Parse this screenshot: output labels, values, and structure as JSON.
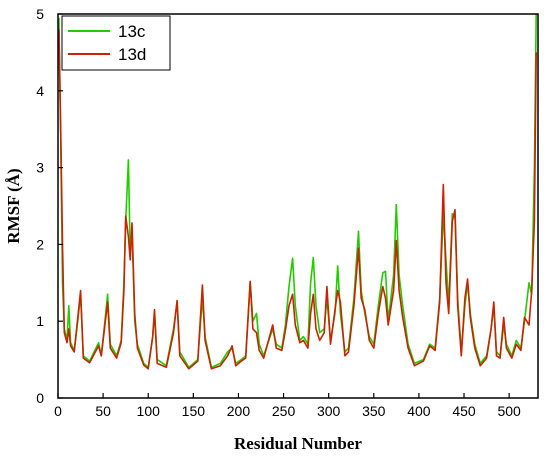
{
  "chart_data": {
    "type": "line",
    "xlabel": "Residual Number",
    "ylabel": "RMSF (Å)",
    "xlim": [
      0,
      532
    ],
    "ylim": [
      0,
      5
    ],
    "xticks": [
      0,
      50,
      100,
      150,
      200,
      250,
      300,
      350,
      400,
      450,
      500
    ],
    "yticks": [
      0,
      1,
      2,
      3,
      4,
      5
    ],
    "grid": false,
    "legend_position": "top-left",
    "series": [
      {
        "name": "13c",
        "color": "#22cc00",
        "points": [
          [
            1,
            4.95
          ],
          [
            3,
            3.4
          ],
          [
            5,
            1.5
          ],
          [
            7,
            0.9
          ],
          [
            10,
            0.75
          ],
          [
            12,
            1.2
          ],
          [
            14,
            0.72
          ],
          [
            18,
            0.62
          ],
          [
            22,
            1.0
          ],
          [
            25,
            1.35
          ],
          [
            28,
            0.55
          ],
          [
            35,
            0.48
          ],
          [
            45,
            0.72
          ],
          [
            48,
            0.55
          ],
          [
            52,
            1.0
          ],
          [
            55,
            1.35
          ],
          [
            58,
            0.7
          ],
          [
            65,
            0.55
          ],
          [
            70,
            0.75
          ],
          [
            73,
            1.5
          ],
          [
            75,
            2.3
          ],
          [
            78,
            3.1
          ],
          [
            80,
            1.9
          ],
          [
            82,
            2.2
          ],
          [
            85,
            1.0
          ],
          [
            88,
            0.7
          ],
          [
            95,
            0.45
          ],
          [
            100,
            0.4
          ],
          [
            105,
            0.8
          ],
          [
            107,
            1.1
          ],
          [
            110,
            0.5
          ],
          [
            120,
            0.42
          ],
          [
            128,
            0.9
          ],
          [
            132,
            1.25
          ],
          [
            135,
            0.6
          ],
          [
            145,
            0.4
          ],
          [
            155,
            0.5
          ],
          [
            160,
            1.3
          ],
          [
            163,
            0.8
          ],
          [
            170,
            0.4
          ],
          [
            180,
            0.45
          ],
          [
            188,
            0.6
          ],
          [
            193,
            0.65
          ],
          [
            197,
            0.45
          ],
          [
            203,
            0.5
          ],
          [
            208,
            0.55
          ],
          [
            213,
            1.5
          ],
          [
            216,
            1.0
          ],
          [
            220,
            1.1
          ],
          [
            223,
            0.7
          ],
          [
            228,
            0.55
          ],
          [
            238,
            0.9
          ],
          [
            242,
            0.7
          ],
          [
            248,
            0.65
          ],
          [
            252,
            0.95
          ],
          [
            256,
            1.45
          ],
          [
            260,
            1.82
          ],
          [
            263,
            1.2
          ],
          [
            268,
            0.75
          ],
          [
            272,
            0.8
          ],
          [
            277,
            0.7
          ],
          [
            280,
            1.5
          ],
          [
            283,
            1.83
          ],
          [
            286,
            1.2
          ],
          [
            290,
            0.85
          ],
          [
            295,
            0.9
          ],
          [
            298,
            1.3
          ],
          [
            302,
            0.75
          ],
          [
            307,
            1.1
          ],
          [
            310,
            1.72
          ],
          [
            313,
            1.1
          ],
          [
            318,
            0.6
          ],
          [
            322,
            0.65
          ],
          [
            328,
            1.3
          ],
          [
            333,
            2.17
          ],
          [
            336,
            1.4
          ],
          [
            340,
            1.1
          ],
          [
            345,
            0.8
          ],
          [
            350,
            0.7
          ],
          [
            355,
            1.2
          ],
          [
            360,
            1.63
          ],
          [
            363,
            1.65
          ],
          [
            366,
            1.0
          ],
          [
            372,
            1.6
          ],
          [
            375,
            2.52
          ],
          [
            378,
            1.6
          ],
          [
            382,
            1.2
          ],
          [
            388,
            0.7
          ],
          [
            395,
            0.45
          ],
          [
            405,
            0.5
          ],
          [
            412,
            0.7
          ],
          [
            418,
            0.65
          ],
          [
            423,
            1.3
          ],
          [
            427,
            2.4
          ],
          [
            430,
            1.8
          ],
          [
            433,
            1.2
          ],
          [
            437,
            2.4
          ],
          [
            440,
            2.35
          ],
          [
            443,
            1.3
          ],
          [
            447,
            0.6
          ],
          [
            451,
            1.2
          ],
          [
            454,
            1.5
          ],
          [
            457,
            1.1
          ],
          [
            462,
            0.7
          ],
          [
            468,
            0.45
          ],
          [
            475,
            0.55
          ],
          [
            480,
            0.9
          ],
          [
            483,
            1.2
          ],
          [
            486,
            0.6
          ],
          [
            490,
            0.55
          ],
          [
            494,
            0.95
          ],
          [
            497,
            0.7
          ],
          [
            503,
            0.55
          ],
          [
            508,
            0.75
          ],
          [
            513,
            0.65
          ],
          [
            517,
            1.0
          ],
          [
            522,
            1.5
          ],
          [
            525,
            1.35
          ],
          [
            528,
            3.0
          ],
          [
            530,
            5.0
          ]
        ]
      },
      {
        "name": "13d",
        "color": "#cc2200",
        "points": [
          [
            1,
            4.8
          ],
          [
            3,
            3.5
          ],
          [
            5,
            2.0
          ],
          [
            7,
            0.85
          ],
          [
            10,
            0.72
          ],
          [
            12,
            0.9
          ],
          [
            14,
            0.68
          ],
          [
            18,
            0.6
          ],
          [
            22,
            1.05
          ],
          [
            25,
            1.4
          ],
          [
            28,
            0.52
          ],
          [
            35,
            0.46
          ],
          [
            45,
            0.68
          ],
          [
            48,
            0.55
          ],
          [
            52,
            0.95
          ],
          [
            55,
            1.25
          ],
          [
            58,
            0.65
          ],
          [
            65,
            0.52
          ],
          [
            70,
            0.72
          ],
          [
            73,
            1.4
          ],
          [
            75,
            2.37
          ],
          [
            78,
            2.1
          ],
          [
            80,
            1.8
          ],
          [
            82,
            2.28
          ],
          [
            85,
            1.1
          ],
          [
            88,
            0.65
          ],
          [
            95,
            0.43
          ],
          [
            100,
            0.38
          ],
          [
            105,
            0.8
          ],
          [
            107,
            1.15
          ],
          [
            110,
            0.45
          ],
          [
            120,
            0.4
          ],
          [
            128,
            0.85
          ],
          [
            132,
            1.27
          ],
          [
            135,
            0.55
          ],
          [
            145,
            0.38
          ],
          [
            155,
            0.48
          ],
          [
            160,
            1.47
          ],
          [
            163,
            0.75
          ],
          [
            170,
            0.38
          ],
          [
            180,
            0.42
          ],
          [
            188,
            0.55
          ],
          [
            193,
            0.68
          ],
          [
            197,
            0.42
          ],
          [
            203,
            0.48
          ],
          [
            208,
            0.52
          ],
          [
            213,
            1.52
          ],
          [
            216,
            0.9
          ],
          [
            220,
            0.85
          ],
          [
            223,
            0.62
          ],
          [
            228,
            0.52
          ],
          [
            238,
            0.95
          ],
          [
            242,
            0.65
          ],
          [
            248,
            0.62
          ],
          [
            252,
            0.88
          ],
          [
            256,
            1.2
          ],
          [
            260,
            1.35
          ],
          [
            263,
            0.95
          ],
          [
            268,
            0.72
          ],
          [
            272,
            0.75
          ],
          [
            277,
            0.65
          ],
          [
            280,
            1.1
          ],
          [
            283,
            1.35
          ],
          [
            286,
            0.9
          ],
          [
            290,
            0.75
          ],
          [
            295,
            0.85
          ],
          [
            298,
            1.45
          ],
          [
            302,
            0.7
          ],
          [
            307,
            1.15
          ],
          [
            310,
            1.4
          ],
          [
            313,
            1.25
          ],
          [
            318,
            0.55
          ],
          [
            322,
            0.6
          ],
          [
            328,
            1.2
          ],
          [
            333,
            1.95
          ],
          [
            336,
            1.3
          ],
          [
            340,
            1.15
          ],
          [
            345,
            0.75
          ],
          [
            350,
            0.65
          ],
          [
            355,
            1.1
          ],
          [
            360,
            1.45
          ],
          [
            363,
            1.3
          ],
          [
            366,
            0.95
          ],
          [
            372,
            1.4
          ],
          [
            375,
            2.05
          ],
          [
            378,
            1.4
          ],
          [
            382,
            1.05
          ],
          [
            388,
            0.65
          ],
          [
            395,
            0.42
          ],
          [
            405,
            0.48
          ],
          [
            412,
            0.68
          ],
          [
            418,
            0.62
          ],
          [
            423,
            1.25
          ],
          [
            427,
            2.78
          ],
          [
            430,
            1.5
          ],
          [
            433,
            1.1
          ],
          [
            437,
            2.3
          ],
          [
            440,
            2.45
          ],
          [
            443,
            1.2
          ],
          [
            447,
            0.55
          ],
          [
            451,
            1.3
          ],
          [
            454,
            1.55
          ],
          [
            457,
            1.05
          ],
          [
            462,
            0.65
          ],
          [
            468,
            0.42
          ],
          [
            475,
            0.52
          ],
          [
            480,
            0.9
          ],
          [
            483,
            1.25
          ],
          [
            486,
            0.55
          ],
          [
            490,
            0.52
          ],
          [
            494,
            1.05
          ],
          [
            497,
            0.65
          ],
          [
            503,
            0.52
          ],
          [
            508,
            0.7
          ],
          [
            513,
            0.62
          ],
          [
            517,
            1.05
          ],
          [
            522,
            0.95
          ],
          [
            525,
            1.4
          ],
          [
            528,
            2.3
          ],
          [
            530,
            4.5
          ]
        ]
      }
    ]
  }
}
